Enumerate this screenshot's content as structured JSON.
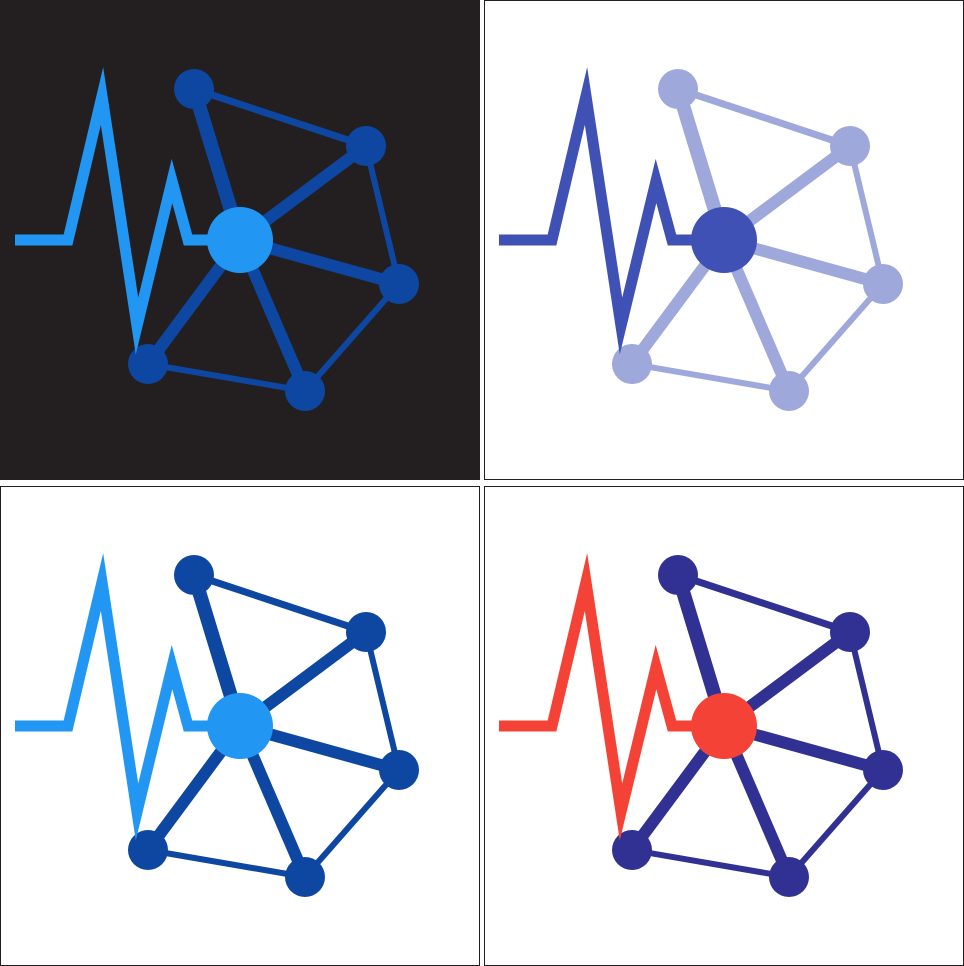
{
  "logo_variants": [
    {
      "variant": "dark-background",
      "background": "#231f20",
      "pulse_color": "#2196f3",
      "hub_color": "#2196f3",
      "network_color": "#0d47a1"
    },
    {
      "variant": "light-indigo",
      "background": "#ffffff",
      "pulse_color": "#3f51b5",
      "hub_color": "#3f51b5",
      "network_color": "#9fa8da"
    },
    {
      "variant": "white-blue",
      "background": "#ffffff",
      "pulse_color": "#2196f3",
      "hub_color": "#2196f3",
      "network_color": "#0d47a1"
    },
    {
      "variant": "white-red-indigo",
      "background": "#ffffff",
      "pulse_color": "#f44336",
      "hub_color": "#f44336",
      "network_color": "#303193"
    }
  ],
  "icons": {
    "pulse": "heartbeat-line-icon",
    "network": "network-graph-icon",
    "hub": "hub-node-icon"
  }
}
